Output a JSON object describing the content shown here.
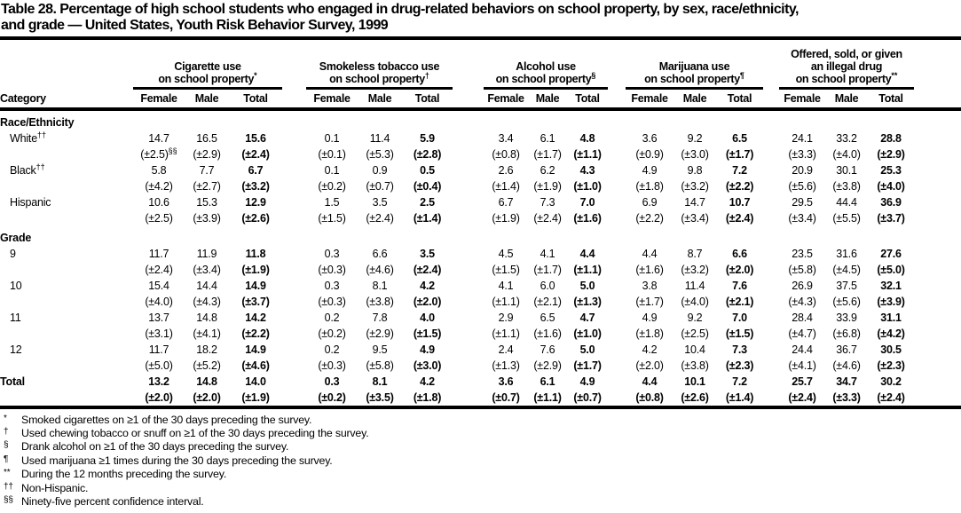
{
  "title_lines": [
    "Table 28. Percentage of high school students who engaged in drug-related behaviors on school property, by sex, race/ethnicity,",
    "and grade — United States, Youth Risk Behavior Survey, 1999"
  ],
  "colors": {
    "text": "#000000",
    "background": "#ffffff",
    "rule": "#000000"
  },
  "table": {
    "category_header": "Category",
    "sex_headers": [
      "Female",
      "Male",
      "Total"
    ],
    "groups": [
      {
        "name": "cigarette-use",
        "lines": [
          "Cigarette use",
          "on school property^*^"
        ]
      },
      {
        "name": "smokeless-tobacco-use",
        "lines": [
          "Smokeless tobacco use",
          "on school property^†^"
        ]
      },
      {
        "name": "alcohol-use",
        "lines": [
          "Alcohol use",
          "on school property^§^"
        ]
      },
      {
        "name": "marijuana-use",
        "lines": [
          "Marijuana use",
          "on school property^¶^"
        ]
      },
      {
        "name": "offered-sold-given-illegal-drug",
        "lines": [
          "Offered, sold, or given",
          "an illegal drug",
          "on school property^**^"
        ]
      }
    ],
    "sections": [
      {
        "label": "Race/Ethnicity",
        "rows": [
          {
            "category": "White^††^",
            "values": [
              "14.7",
              "16.5",
              "15.6",
              "0.1",
              "11.4",
              "5.9",
              "3.4",
              "6.1",
              "4.8",
              "3.6",
              "9.2",
              "6.5",
              "24.1",
              "33.2",
              "28.8"
            ],
            "ci": [
              "(±2.5)^§§^",
              "(±2.9)",
              "(±2.4)",
              "(±0.1)",
              "(±5.3)",
              "(±2.8)",
              "(±0.8)",
              "(±1.7)",
              "(±1.1)",
              "(±0.9)",
              "(±3.0)",
              "(±1.7)",
              "(±3.3)",
              "(±4.0)",
              "(±2.9)"
            ]
          },
          {
            "category": "Black^††^",
            "values": [
              "5.8",
              "7.7",
              "6.7",
              "0.1",
              "0.9",
              "0.5",
              "2.6",
              "6.2",
              "4.3",
              "4.9",
              "9.8",
              "7.2",
              "20.9",
              "30.1",
              "25.3"
            ],
            "ci": [
              "(±4.2)",
              "(±2.7)",
              "(±3.2)",
              "(±0.2)",
              "(±0.7)",
              "(±0.4)",
              "(±1.4)",
              "(±1.9)",
              "(±1.0)",
              "(±1.8)",
              "(±3.2)",
              "(±2.2)",
              "(±5.6)",
              "(±3.8)",
              "(±4.0)"
            ]
          },
          {
            "category": "Hispanic",
            "values": [
              "10.6",
              "15.3",
              "12.9",
              "1.5",
              "3.5",
              "2.5",
              "6.7",
              "7.3",
              "7.0",
              "6.9",
              "14.7",
              "10.7",
              "29.5",
              "44.4",
              "36.9"
            ],
            "ci": [
              "(±2.5)",
              "(±3.9)",
              "(±2.6)",
              "(±1.5)",
              "(±2.4)",
              "(±1.4)",
              "(±1.9)",
              "(±2.4)",
              "(±1.6)",
              "(±2.2)",
              "(±3.4)",
              "(±2.4)",
              "(±3.4)",
              "(±5.5)",
              "(±3.7)"
            ]
          }
        ]
      },
      {
        "label": "Grade",
        "rows": [
          {
            "category": "9",
            "values": [
              "11.7",
              "11.9",
              "11.8",
              "0.3",
              "6.6",
              "3.5",
              "4.5",
              "4.1",
              "4.4",
              "4.4",
              "8.7",
              "6.6",
              "23.5",
              "31.6",
              "27.6"
            ],
            "ci": [
              "(±2.4)",
              "(±3.4)",
              "(±1.9)",
              "(±0.3)",
              "(±4.6)",
              "(±2.4)",
              "(±1.5)",
              "(±1.7)",
              "(±1.1)",
              "(±1.6)",
              "(±3.2)",
              "(±2.0)",
              "(±5.8)",
              "(±4.5)",
              "(±5.0)"
            ]
          },
          {
            "category": "10",
            "values": [
              "15.4",
              "14.4",
              "14.9",
              "0.3",
              "8.1",
              "4.2",
              "4.1",
              "6.0",
              "5.0",
              "3.8",
              "11.4",
              "7.6",
              "26.9",
              "37.5",
              "32.1"
            ],
            "ci": [
              "(±4.0)",
              "(±4.3)",
              "(±3.7)",
              "(±0.3)",
              "(±3.8)",
              "(±2.0)",
              "(±1.1)",
              "(±2.1)",
              "(±1.3)",
              "(±1.7)",
              "(±4.0)",
              "(±2.1)",
              "(±4.3)",
              "(±5.6)",
              "(±3.9)"
            ]
          },
          {
            "category": "11",
            "values": [
              "13.7",
              "14.8",
              "14.2",
              "0.2",
              "7.8",
              "4.0",
              "2.9",
              "6.5",
              "4.7",
              "4.9",
              "9.2",
              "7.0",
              "28.4",
              "33.9",
              "31.1"
            ],
            "ci": [
              "(±3.1)",
              "(±4.1)",
              "(±2.2)",
              "(±0.2)",
              "(±2.9)",
              "(±1.5)",
              "(±1.1)",
              "(±1.6)",
              "(±1.0)",
              "(±1.8)",
              "(±2.5)",
              "(±1.5)",
              "(±4.7)",
              "(±6.8)",
              "(±4.2)"
            ]
          },
          {
            "category": "12",
            "values": [
              "11.7",
              "18.2",
              "14.9",
              "0.2",
              "9.5",
              "4.9",
              "2.4",
              "7.6",
              "5.0",
              "4.2",
              "10.4",
              "7.3",
              "24.4",
              "36.7",
              "30.5"
            ],
            "ci": [
              "(±5.0)",
              "(±5.2)",
              "(±4.6)",
              "(±0.3)",
              "(±5.8)",
              "(±3.0)",
              "(±1.3)",
              "(±2.9)",
              "(±1.7)",
              "(±2.0)",
              "(±3.8)",
              "(±2.3)",
              "(±4.1)",
              "(±4.6)",
              "(±2.3)"
            ]
          }
        ]
      },
      {
        "label": null,
        "rows": [
          {
            "category": "Total",
            "bold": true,
            "values": [
              "13.2",
              "14.8",
              "14.0",
              "0.3",
              "8.1",
              "4.2",
              "3.6",
              "6.1",
              "4.9",
              "4.4",
              "10.1",
              "7.2",
              "25.7",
              "34.7",
              "30.2"
            ],
            "ci": [
              "(±2.0)",
              "(±2.0)",
              "(±1.9)",
              "(±0.2)",
              "(±3.5)",
              "(±1.8)",
              "(±0.7)",
              "(±1.1)",
              "(±0.7)",
              "(±0.8)",
              "(±2.6)",
              "(±1.4)",
              "(±2.4)",
              "(±3.3)",
              "(±2.4)"
            ]
          }
        ]
      }
    ]
  },
  "footnotes": [
    {
      "marker": "*",
      "text": "Smoked cigarettes on ≥1 of the 30 days preceding the survey."
    },
    {
      "marker": "†",
      "text": "Used chewing tobacco or snuff on ≥1 of the 30 days preceding the survey."
    },
    {
      "marker": "§",
      "text": "Drank alcohol on ≥1 of the 30 days preceding the survey."
    },
    {
      "marker": "¶",
      "text": "Used marijuana ≥1 times during the 30 days preceding the survey."
    },
    {
      "marker": "**",
      "text": "During the 12 months preceding the survey."
    },
    {
      "marker": "††",
      "text": "Non-Hispanic."
    },
    {
      "marker": "§§",
      "text": "Ninety-five percent confidence interval."
    }
  ]
}
